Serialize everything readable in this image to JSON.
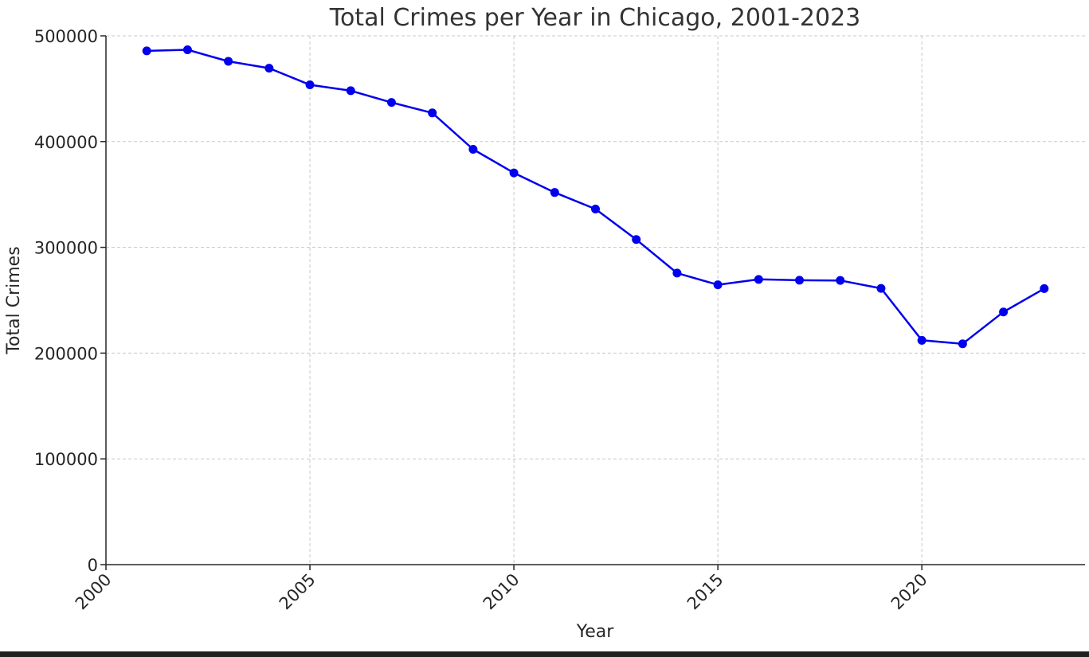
{
  "chart_data": {
    "type": "line",
    "title": "Total Crimes per Year in Chicago, 2001-2023",
    "xlabel": "Year",
    "ylabel": "Total Crimes",
    "xlim": [
      2000,
      2024
    ],
    "ylim": [
      0,
      500000
    ],
    "x_ticks": [
      2000,
      2005,
      2010,
      2015,
      2020
    ],
    "y_ticks": [
      0,
      100000,
      200000,
      300000,
      400000,
      500000
    ],
    "grid": true,
    "color": "#0000ee",
    "series": [
      {
        "x": [
          2001,
          2002,
          2003,
          2004,
          2005,
          2006,
          2007,
          2008,
          2009,
          2010,
          2011,
          2012,
          2013,
          2014,
          2015,
          2016,
          2017,
          2018,
          2019,
          2020,
          2021,
          2022,
          2023
        ],
        "values": [
          485800,
          486800,
          475900,
          469400,
          453700,
          448100,
          437000,
          427100,
          392700,
          370400,
          351900,
          336200,
          307400,
          275700,
          264600,
          269700,
          268900,
          268700,
          261200,
          212100,
          208800,
          238900,
          261000
        ]
      }
    ]
  }
}
